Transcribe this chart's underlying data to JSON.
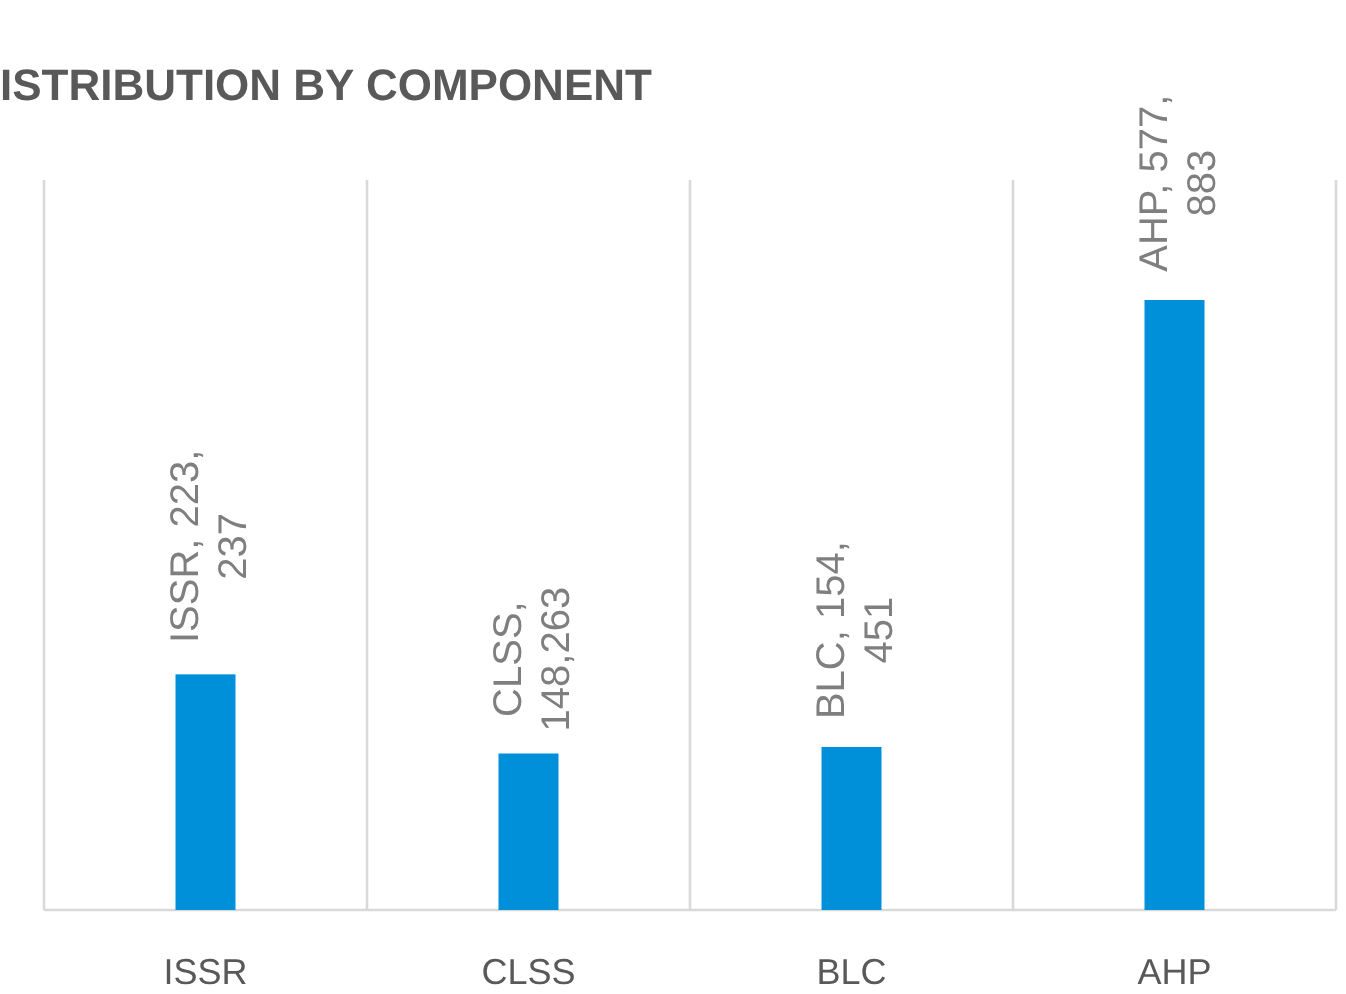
{
  "chart_data": {
    "type": "bar",
    "title": "ISTRIBUTION BY COMPONENT",
    "categories": [
      "ISSR",
      "CLSS",
      "BLC",
      "AHP"
    ],
    "values": [
      223237,
      148263,
      154451,
      577883
    ],
    "color": "#0090d9",
    "value_labels": [
      "ISSR, 223, 237",
      "CLSS, 148,263",
      "BLC, 154, 451",
      "AHP, 577, 883"
    ],
    "grid": "x"
  }
}
